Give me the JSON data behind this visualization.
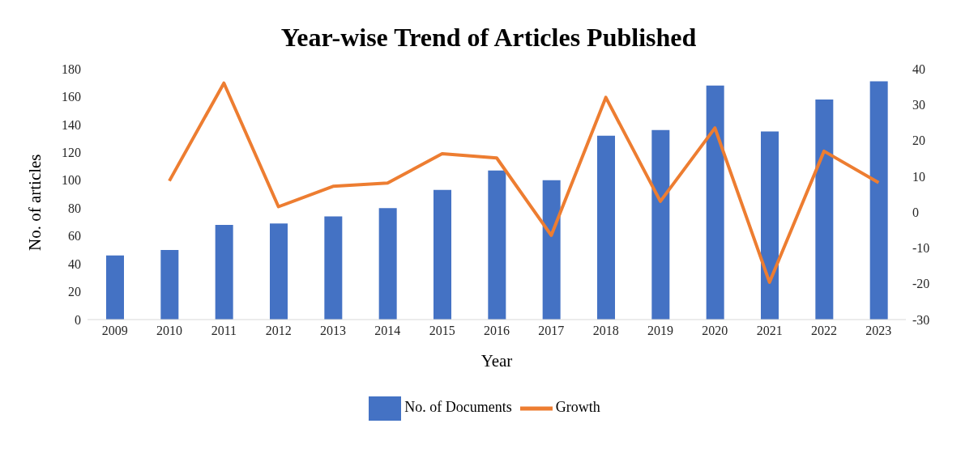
{
  "chart_data": {
    "type": "bar",
    "title": "Year-wise Trend of Articles Published",
    "xlabel": "Year",
    "ylabel": "No. of articles",
    "categories": [
      "2009",
      "2010",
      "2011",
      "2012",
      "2013",
      "2014",
      "2015",
      "2016",
      "2017",
      "2018",
      "2019",
      "2020",
      "2021",
      "2022",
      "2023"
    ],
    "series": [
      {
        "name": "No. of Documents",
        "color": "#4472c4",
        "values": [
          46,
          50,
          68,
          69,
          74,
          80,
          93,
          107,
          100,
          132,
          136,
          168,
          135,
          158,
          171
        ]
      },
      {
        "name": "Growth",
        "type": "line",
        "axis": "y2",
        "color": "#ed7d31",
        "values": [
          null,
          8.7,
          36,
          1.5,
          7.2,
          8.1,
          16.3,
          15.1,
          -6.5,
          32,
          3,
          23.5,
          -19.6,
          17,
          8.2
        ]
      }
    ],
    "ylim": [
      0,
      180
    ],
    "yticks": [
      0,
      20,
      40,
      60,
      80,
      100,
      120,
      140,
      160,
      180
    ],
    "y2lim": [
      -30,
      40
    ],
    "y2ticks": [
      -30,
      -20,
      -10,
      0,
      10,
      20,
      30,
      40
    ],
    "grid": false,
    "legend": "bottom",
    "marker": "none",
    "line_style": "solid"
  }
}
